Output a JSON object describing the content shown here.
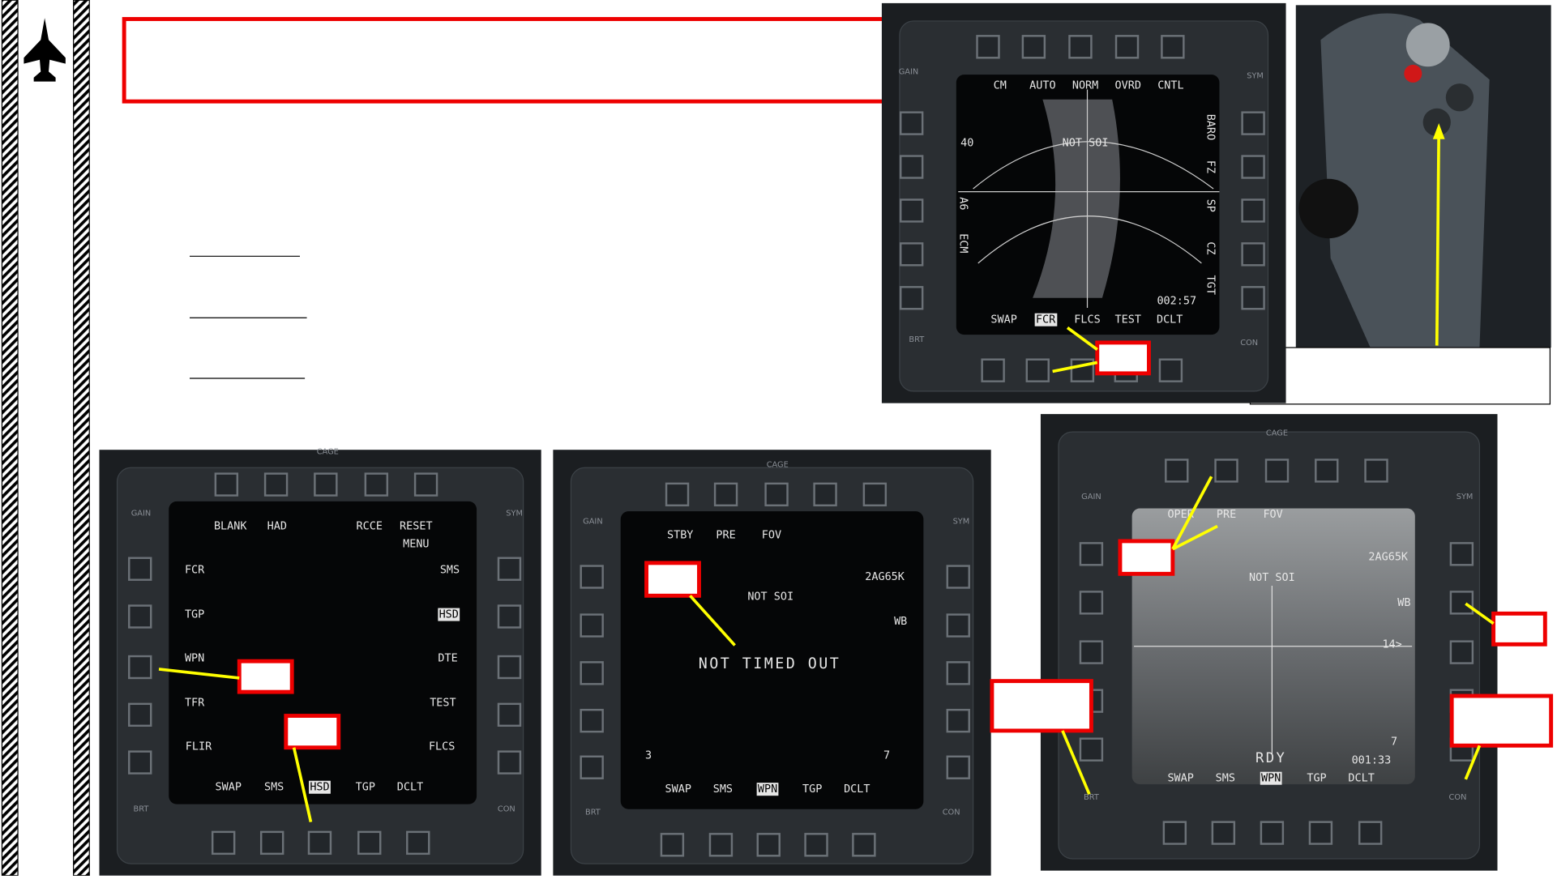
{
  "mfds": [
    {
      "labels": [
        "CM",
        "AUTO",
        "NORM",
        "OVRD",
        "CNTL",
        "BARO",
        "FZ",
        "SP",
        "CZ",
        "TGT",
        "40",
        "A6",
        "ECM",
        "NOT SOI",
        "002:57",
        "SWAP",
        "FCR",
        "FLCS",
        "TEST",
        "DCLT"
      ],
      "bezel": [
        "GAIN",
        "SYM",
        "BRT",
        "CON"
      ]
    },
    {
      "labels": [
        "BLANK",
        "HAD",
        "RCCE",
        "RESET",
        "MENU",
        "FCR",
        "TGP",
        "WPN",
        "TFR",
        "FLIR",
        "SMS",
        "HSD",
        "DTE",
        "TEST",
        "FLCS",
        "SWAP",
        "SMS",
        "HSD",
        "TGP",
        "DCLT"
      ],
      "bezel": [
        "GAIN",
        "SYM",
        "BRT",
        "CON",
        "CAGE"
      ]
    },
    {
      "labels": [
        "STBY",
        "PRE",
        "FOV",
        "2AG65K",
        "NOT SOI",
        "WB",
        "NOT TIMED OUT",
        "3",
        "7",
        "SWAP",
        "SMS",
        "WPN",
        "TGP",
        "DCLT"
      ],
      "bezel": [
        "GAIN",
        "SYM",
        "BRT",
        "CON",
        "CAGE"
      ]
    },
    {
      "labels": [
        "OPER",
        "PRE",
        "FOV",
        "2AG65K",
        "NOT SOI",
        "WB",
        "14>",
        "RDY",
        "7",
        "001:33",
        "SWAP",
        "SMS",
        "WPN",
        "TGP",
        "DCLT"
      ],
      "bezel": [
        "GAIN",
        "SYM",
        "BRT",
        "CON",
        "CAGE"
      ]
    }
  ]
}
